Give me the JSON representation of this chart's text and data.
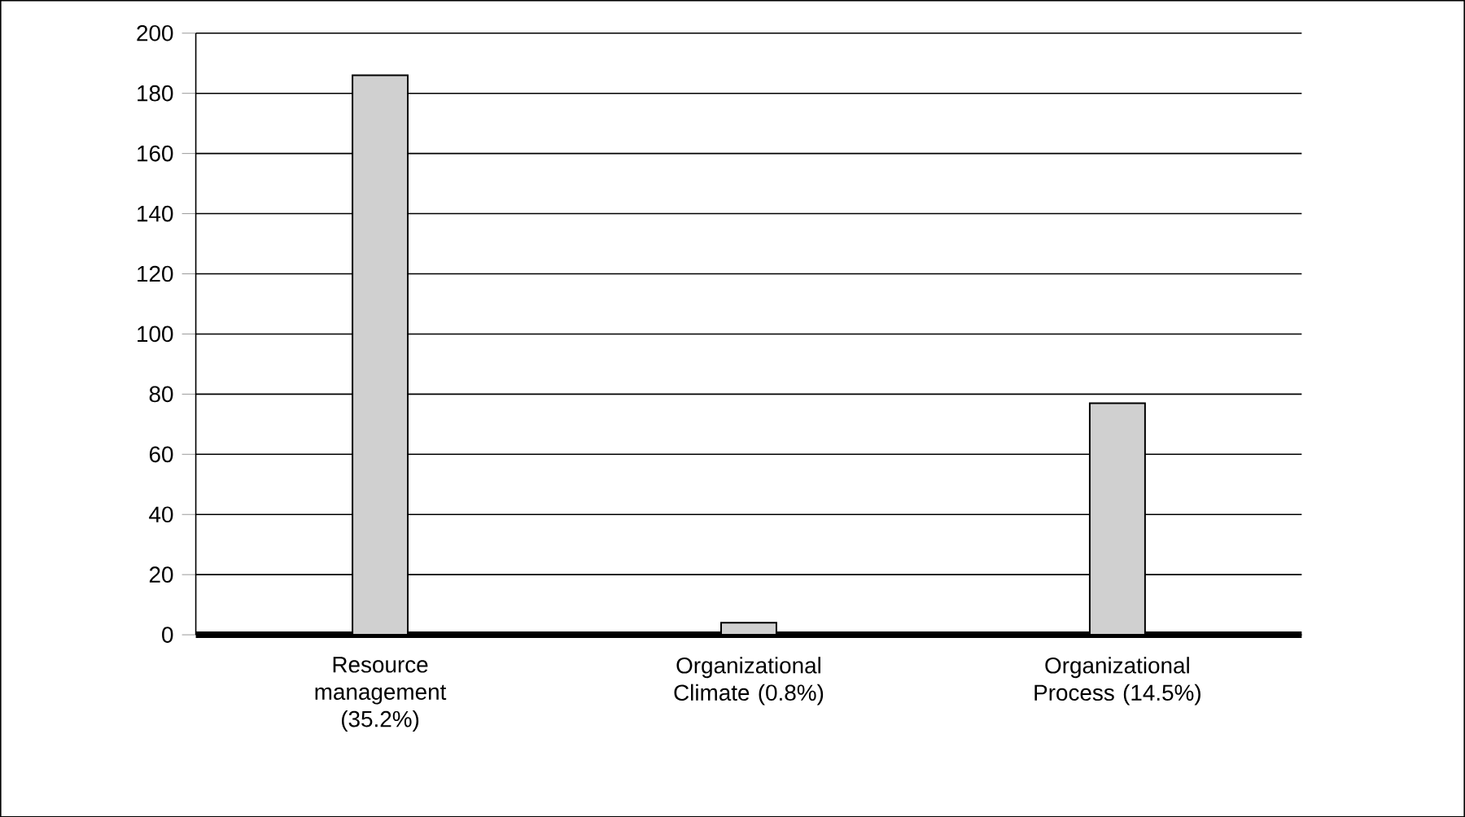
{
  "chart_data": {
    "type": "bar",
    "categories": [
      "Resource management (35.2%)",
      "Organizational Climate (0.8%)",
      "Organizational Process (14.5%)"
    ],
    "values": [
      186,
      4,
      77
    ],
    "color": "#d0d0d0",
    "ylim": [
      0,
      200
    ],
    "yticks": [
      0,
      20,
      40,
      60,
      80,
      100,
      120,
      140,
      160,
      180,
      200
    ],
    "grid": "y"
  }
}
